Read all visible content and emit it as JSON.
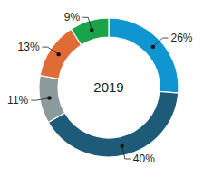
{
  "chart_data": {
    "type": "donut",
    "title": "2019",
    "values": [
      26,
      40,
      11,
      13,
      9
    ],
    "value_labels": [
      "26%",
      "40%",
      "11%",
      "13%",
      "9%"
    ],
    "colors": [
      "#0f95d0",
      "#1e5b78",
      "#8d9a9c",
      "#e06b35",
      "#1ba34a"
    ],
    "data_labels": true
  }
}
